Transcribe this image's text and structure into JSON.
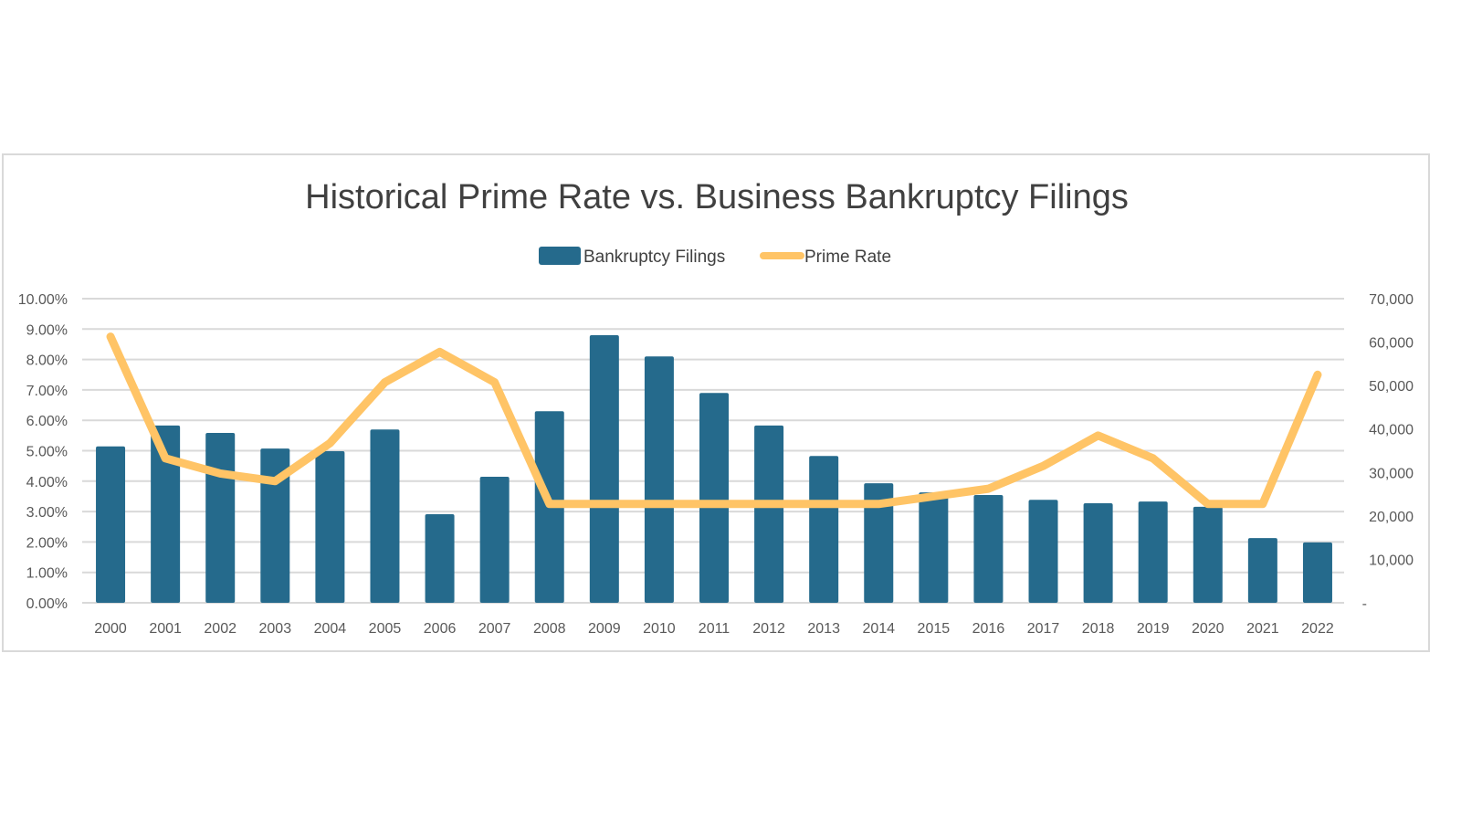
{
  "chart_data": {
    "type": "bar+line",
    "title": "Historical Prime Rate vs. Business Bankruptcy Filings",
    "categories": [
      "2000",
      "2001",
      "2002",
      "2003",
      "2004",
      "2005",
      "2006",
      "2007",
      "2008",
      "2009",
      "2010",
      "2011",
      "2012",
      "2013",
      "2014",
      "2015",
      "2016",
      "2017",
      "2018",
      "2019",
      "2020",
      "2021",
      "2022"
    ],
    "series": [
      {
        "name": "Bankruptcy Filings",
        "type": "bar",
        "axis": "right",
        "color": "#256a8c",
        "values": [
          36000,
          40800,
          39100,
          35500,
          34900,
          39900,
          20400,
          29000,
          44100,
          61600,
          56700,
          48300,
          40800,
          33800,
          27500,
          25400,
          24800,
          23700,
          22900,
          23300,
          22100,
          14900,
          13900
        ]
      },
      {
        "name": "Prime Rate",
        "type": "line",
        "axis": "left",
        "color": "#ffc466",
        "values": [
          8.75,
          4.75,
          4.25,
          4.0,
          5.25,
          7.25,
          8.25,
          7.25,
          3.25,
          3.25,
          3.25,
          3.25,
          3.25,
          3.25,
          3.25,
          3.5,
          3.75,
          4.5,
          5.5,
          4.75,
          3.25,
          3.25,
          7.5
        ]
      }
    ],
    "left_axis": {
      "min": 0,
      "max": 10,
      "step": 1,
      "tick_labels": [
        "0.00%",
        "1.00%",
        "2.00%",
        "3.00%",
        "4.00%",
        "5.00%",
        "6.00%",
        "7.00%",
        "8.00%",
        "9.00%",
        "10.00%"
      ]
    },
    "right_axis": {
      "min": 0,
      "max": 70000,
      "step": 10000,
      "tick_labels": [
        "-",
        "10,000",
        "20,000",
        "30,000",
        "40,000",
        "50,000",
        "60,000",
        "70,000"
      ]
    },
    "grid": true,
    "legend": "top"
  }
}
